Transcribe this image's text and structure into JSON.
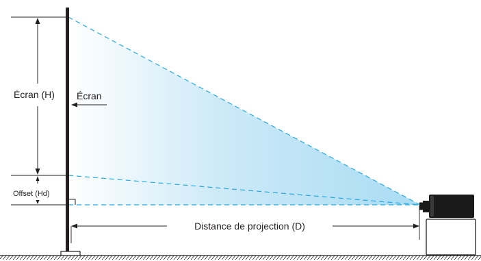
{
  "labels": {
    "screen_height": "Écran (H)",
    "screen": "Écran",
    "offset": "Offset (Hd)",
    "distance": "Distance de projection (D)"
  },
  "colors": {
    "ink": "#231f20",
    "beam_dash": "#29a8e0",
    "beam_fill": "#b8e1f4",
    "projector": "#1a1a1a",
    "stand_fill": "#ffffff"
  }
}
